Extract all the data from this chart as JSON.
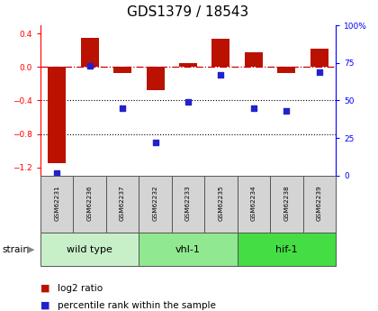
{
  "title": "GDS1379 / 18543",
  "samples": [
    "GSM62231",
    "GSM62236",
    "GSM62237",
    "GSM62232",
    "GSM62233",
    "GSM62235",
    "GSM62234",
    "GSM62238",
    "GSM62239"
  ],
  "log2_ratio": [
    -1.15,
    0.35,
    -0.07,
    -0.28,
    0.05,
    0.34,
    0.18,
    -0.07,
    0.22
  ],
  "percentile_rank": [
    2,
    73,
    45,
    22,
    49,
    67,
    45,
    43,
    69
  ],
  "groups": [
    {
      "label": "wild type",
      "start": 0,
      "end": 3,
      "color": "#c8f0c8"
    },
    {
      "label": "vhl-1",
      "start": 3,
      "end": 6,
      "color": "#90e890"
    },
    {
      "label": "hif-1",
      "start": 6,
      "end": 9,
      "color": "#44dd44"
    }
  ],
  "ylim_left": [
    -1.3,
    0.5
  ],
  "ylim_right": [
    0,
    100
  ],
  "bar_color": "#bb1100",
  "dot_color": "#2222cc",
  "zero_line_color": "#cc0000",
  "grid_color": "#000000",
  "title_fontsize": 11,
  "sample_fontsize": 5.5,
  "group_fontsize": 8,
  "legend_fontsize": 7.5
}
